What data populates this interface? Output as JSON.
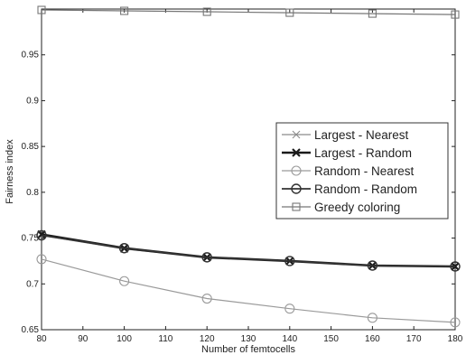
{
  "chart_data": {
    "type": "line",
    "xlabel": "Number of femtocells",
    "ylabel": "Fairness index",
    "xlim": [
      80,
      180
    ],
    "ylim": [
      0.65,
      1.0
    ],
    "xticks": [
      80,
      90,
      100,
      110,
      120,
      130,
      140,
      150,
      160,
      170,
      180
    ],
    "yticks": [
      0.65,
      0.7,
      0.75,
      0.8,
      0.85,
      0.9,
      0.95
    ],
    "xtick_labels": [
      "80",
      "90",
      "100",
      "110",
      "120",
      "130",
      "140",
      "150",
      "160",
      "170",
      "180"
    ],
    "ytick_labels": [
      "0.65",
      "0.7",
      "0.75",
      "0.8",
      "0.85",
      "0.9",
      "0.95"
    ],
    "x": [
      80,
      100,
      120,
      140,
      160,
      180
    ],
    "series": [
      {
        "name": "Largest - Nearest",
        "values": [
          0.753,
          0.738,
          0.729,
          0.725,
          0.72,
          0.719
        ],
        "marker": "x",
        "color": "#8a8a8a",
        "width": 1.2
      },
      {
        "name": "Largest - Random",
        "values": [
          0.754,
          0.739,
          0.729,
          0.725,
          0.72,
          0.719
        ],
        "marker": "x",
        "color": "#1a1a1a",
        "width": 2.6
      },
      {
        "name": "Random - Nearest",
        "values": [
          0.727,
          0.703,
          0.684,
          0.673,
          0.663,
          0.658
        ],
        "marker": "o",
        "color": "#9a9a9a",
        "width": 1.2
      },
      {
        "name": "Random - Random",
        "values": [
          0.753,
          0.739,
          0.729,
          0.725,
          0.72,
          0.719
        ],
        "marker": "o",
        "color": "#333333",
        "width": 1.8
      },
      {
        "name": "Greedy coloring",
        "values": [
          0.999,
          0.998,
          0.997,
          0.996,
          0.995,
          0.994
        ],
        "marker": "s",
        "color": "#777777",
        "width": 1.2
      }
    ],
    "grid": false,
    "legend_position": "center-right"
  }
}
